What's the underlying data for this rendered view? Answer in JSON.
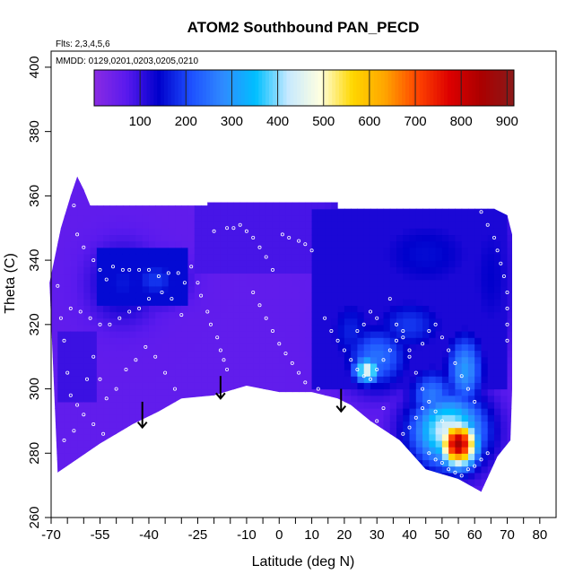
{
  "chart_data": {
    "type": "heatmap",
    "title": "ATOM2 Southbound PAN_PECD",
    "flights_note": "Flts: 2,3,4,5,6",
    "dates_note": "MMDD: 0129,0201,0203,0205,0210",
    "xlabel": "Latitude (deg N)",
    "ylabel": "Theta (C)",
    "xlim": [
      -70,
      85
    ],
    "ylim": [
      260,
      405
    ],
    "x_ticks_labeled": [
      -70,
      -55,
      -40,
      -25,
      -10,
      0,
      10,
      20,
      30,
      40,
      50,
      60,
      70,
      80
    ],
    "x_ticks_labeled_text": [
      "-70",
      "-55",
      "-40",
      "-25",
      "-10",
      "0",
      "10",
      "20",
      "30",
      "40",
      "50",
      "60",
      "70",
      "80"
    ],
    "x_ticks_minor": [
      -65,
      -60,
      -50,
      -45,
      -35,
      -30,
      -20,
      -15,
      -5,
      5,
      15,
      25,
      35,
      45,
      55,
      65,
      75
    ],
    "y_ticks": [
      260,
      280,
      300,
      320,
      340,
      360,
      380,
      400
    ],
    "y_ticks_text": [
      "260",
      "280",
      "300",
      "320",
      "340",
      "360",
      "380",
      "400"
    ],
    "colorbar": {
      "min": 0,
      "max": 915,
      "ticks": [
        100,
        200,
        300,
        400,
        500,
        600,
        700,
        800,
        900
      ],
      "ticks_text": [
        "100",
        "200",
        "300",
        "400",
        "500",
        "600",
        "700",
        "800",
        "900"
      ],
      "colors": [
        "#8a2be2",
        "#5a1aee",
        "#0000cc",
        "#1e50ff",
        "#2f8bff",
        "#00bfff",
        "#c6e9ff",
        "#ffffe0",
        "#ffd700",
        "#ffa500",
        "#ff4500",
        "#dd0000",
        "#aa0000",
        "#8b1a1a"
      ]
    },
    "background_value": 60,
    "boundary_top": [
      [
        -70.5,
        333
      ],
      [
        -67,
        350
      ],
      [
        -64,
        360
      ],
      [
        -62,
        366
      ],
      [
        -60,
        362
      ],
      [
        -58,
        357
      ],
      [
        -22,
        357
      ],
      [
        -22,
        358
      ],
      [
        18,
        358
      ],
      [
        18,
        356
      ],
      [
        66,
        356
      ],
      [
        70,
        354
      ],
      [
        71.5,
        348
      ],
      [
        71.5,
        300
      ],
      [
        71,
        284
      ]
    ],
    "boundary_bottom": [
      [
        67,
        279
      ],
      [
        62,
        268
      ],
      [
        55,
        272
      ],
      [
        45,
        275
      ],
      [
        37,
        284
      ],
      [
        28,
        290
      ],
      [
        22,
        295
      ],
      [
        18,
        297
      ],
      [
        10,
        299
      ],
      [
        0,
        299
      ],
      [
        -10,
        301
      ],
      [
        -20,
        298
      ],
      [
        -30,
        297
      ],
      [
        -37,
        293
      ],
      [
        -45,
        289
      ],
      [
        -55,
        283
      ],
      [
        -68,
        274
      ]
    ],
    "features": [
      {
        "lat": 55,
        "theta": 283,
        "value": 850,
        "sx": 4,
        "sy": 5
      },
      {
        "lat": 52,
        "theta": 287,
        "value": 450,
        "sx": 8,
        "sy": 8
      },
      {
        "lat": 47,
        "theta": 298,
        "value": 260,
        "sx": 5,
        "sy": 6
      },
      {
        "lat": 57,
        "theta": 306,
        "value": 300,
        "sx": 4,
        "sy": 8
      },
      {
        "lat": 27,
        "theta": 306,
        "value": 470,
        "sx": 3,
        "sy": 3
      },
      {
        "lat": 30,
        "theta": 310,
        "value": 250,
        "sx": 7,
        "sy": 7
      },
      {
        "lat": 22,
        "theta": 318,
        "value": 170,
        "sx": 5,
        "sy": 8
      },
      {
        "lat": 40,
        "theta": 320,
        "value": 190,
        "sx": 8,
        "sy": 6
      },
      {
        "lat": -38,
        "theta": 334,
        "value": 190,
        "sx": 6,
        "sy": 5
      },
      {
        "lat": -48,
        "theta": 333,
        "value": 160,
        "sx": 7,
        "sy": 8
      },
      {
        "lat": 65,
        "theta": 335,
        "value": 140,
        "sx": 6,
        "sy": 18
      },
      {
        "lat": 45,
        "theta": 342,
        "value": 150,
        "sx": 14,
        "sy": 10
      },
      {
        "lat": 22,
        "theta": 350,
        "value": 120,
        "sx": 8,
        "sy": 8
      }
    ],
    "blocks": [
      {
        "lat": [
          -55,
          -28
        ],
        "theta": [
          326,
          344
        ],
        "value": 150
      },
      {
        "lat": [
          -25,
          20
        ],
        "theta": [
          336,
          358
        ],
        "value": 85
      },
      {
        "lat": [
          10,
          70
        ],
        "theta": [
          300,
          356
        ],
        "value": 120
      },
      {
        "lat": [
          -68,
          -56
        ],
        "theta": [
          296,
          318
        ],
        "value": 95
      }
    ],
    "arrows": [
      {
        "lat": -42,
        "theta_top": 296,
        "theta_tip": 288
      },
      {
        "lat": -18,
        "theta_top": 304,
        "theta_tip": 297
      },
      {
        "lat": 19,
        "theta_top": 300,
        "theta_tip": 293
      }
    ],
    "observation_points": [
      [
        -64,
        362
      ],
      [
        -63,
        357
      ],
      [
        -62,
        348
      ],
      [
        -60,
        344
      ],
      [
        -57,
        340
      ],
      [
        -55,
        337
      ],
      [
        -53,
        334
      ],
      [
        -51,
        338
      ],
      [
        -48,
        337
      ],
      [
        -46,
        337
      ],
      [
        -43,
        337
      ],
      [
        -40,
        337
      ],
      [
        -37,
        335
      ],
      [
        -34,
        336
      ],
      [
        -31,
        336
      ],
      [
        -29,
        333
      ],
      [
        -64,
        325
      ],
      [
        -61,
        324
      ],
      [
        -58,
        322
      ],
      [
        -55,
        320
      ],
      [
        -52,
        320
      ],
      [
        -49,
        322
      ],
      [
        -46,
        324
      ],
      [
        -43,
        325
      ],
      [
        -40,
        328
      ],
      [
        -36,
        330
      ],
      [
        -33,
        328
      ],
      [
        -30,
        323
      ],
      [
        -68,
        332
      ],
      [
        -67,
        322
      ],
      [
        -66,
        315
      ],
      [
        -65,
        305
      ],
      [
        -64,
        298
      ],
      [
        -62,
        295
      ],
      [
        -59,
        303
      ],
      [
        -57,
        310
      ],
      [
        -55,
        303
      ],
      [
        -53,
        297
      ],
      [
        -50,
        300
      ],
      [
        -47,
        306
      ],
      [
        -44,
        309
      ],
      [
        -41,
        313
      ],
      [
        -38,
        310
      ],
      [
        -35,
        305
      ],
      [
        -32,
        300
      ],
      [
        -66,
        284
      ],
      [
        -63,
        287
      ],
      [
        -60,
        292
      ],
      [
        -57,
        289
      ],
      [
        -54,
        286
      ],
      [
        -51,
        282
      ],
      [
        -48,
        284
      ],
      [
        -45,
        286
      ],
      [
        -27,
        338
      ],
      [
        -25,
        333
      ],
      [
        -24,
        329
      ],
      [
        -22,
        324
      ],
      [
        -21,
        320
      ],
      [
        -19,
        316
      ],
      [
        -18,
        312
      ],
      [
        -17,
        309
      ],
      [
        -16,
        306
      ],
      [
        -20,
        349
      ],
      [
        -16,
        350
      ],
      [
        -14,
        350
      ],
      [
        -12,
        351
      ],
      [
        -10,
        349
      ],
      [
        -8,
        347
      ],
      [
        -6,
        344
      ],
      [
        -4,
        341
      ],
      [
        -2,
        337
      ],
      [
        1,
        348
      ],
      [
        3,
        347
      ],
      [
        6,
        346
      ],
      [
        8,
        345
      ],
      [
        10,
        343
      ],
      [
        -8,
        330
      ],
      [
        -6,
        326
      ],
      [
        -4,
        322
      ],
      [
        -2,
        318
      ],
      [
        0,
        314
      ],
      [
        2,
        311
      ],
      [
        4,
        308
      ],
      [
        6,
        305
      ],
      [
        8,
        302
      ],
      [
        12,
        300
      ],
      [
        14,
        322
      ],
      [
        16,
        318
      ],
      [
        18,
        315
      ],
      [
        20,
        312
      ],
      [
        22,
        309
      ],
      [
        24,
        306
      ],
      [
        26,
        304
      ],
      [
        28,
        303
      ],
      [
        30,
        306
      ],
      [
        32,
        309
      ],
      [
        34,
        312
      ],
      [
        36,
        315
      ],
      [
        38,
        318
      ],
      [
        40,
        310
      ],
      [
        42,
        305
      ],
      [
        44,
        300
      ],
      [
        46,
        296
      ],
      [
        48,
        293
      ],
      [
        50,
        290
      ],
      [
        34,
        328
      ],
      [
        36,
        320
      ],
      [
        38,
        316
      ],
      [
        40,
        312
      ],
      [
        44,
        314
      ],
      [
        46,
        318
      ],
      [
        48,
        320
      ],
      [
        50,
        316
      ],
      [
        52,
        312
      ],
      [
        54,
        308
      ],
      [
        56,
        304
      ],
      [
        58,
        300
      ],
      [
        60,
        296
      ],
      [
        30,
        322
      ],
      [
        28,
        324
      ],
      [
        26,
        320
      ],
      [
        24,
        318
      ],
      [
        62,
        355
      ],
      [
        64,
        351
      ],
      [
        66,
        347
      ],
      [
        67,
        343
      ],
      [
        68,
        339
      ],
      [
        69,
        335
      ],
      [
        70,
        330
      ],
      [
        70,
        325
      ],
      [
        70,
        320
      ],
      [
        70,
        315
      ],
      [
        46,
        280
      ],
      [
        48,
        278
      ],
      [
        50,
        277
      ],
      [
        52,
        275
      ],
      [
        54,
        274
      ],
      [
        56,
        273
      ],
      [
        58,
        275
      ],
      [
        60,
        276
      ],
      [
        62,
        278
      ],
      [
        64,
        280
      ],
      [
        38,
        286
      ],
      [
        40,
        288
      ],
      [
        42,
        291
      ],
      [
        44,
        294
      ],
      [
        30,
        290
      ],
      [
        32,
        294
      ]
    ]
  }
}
